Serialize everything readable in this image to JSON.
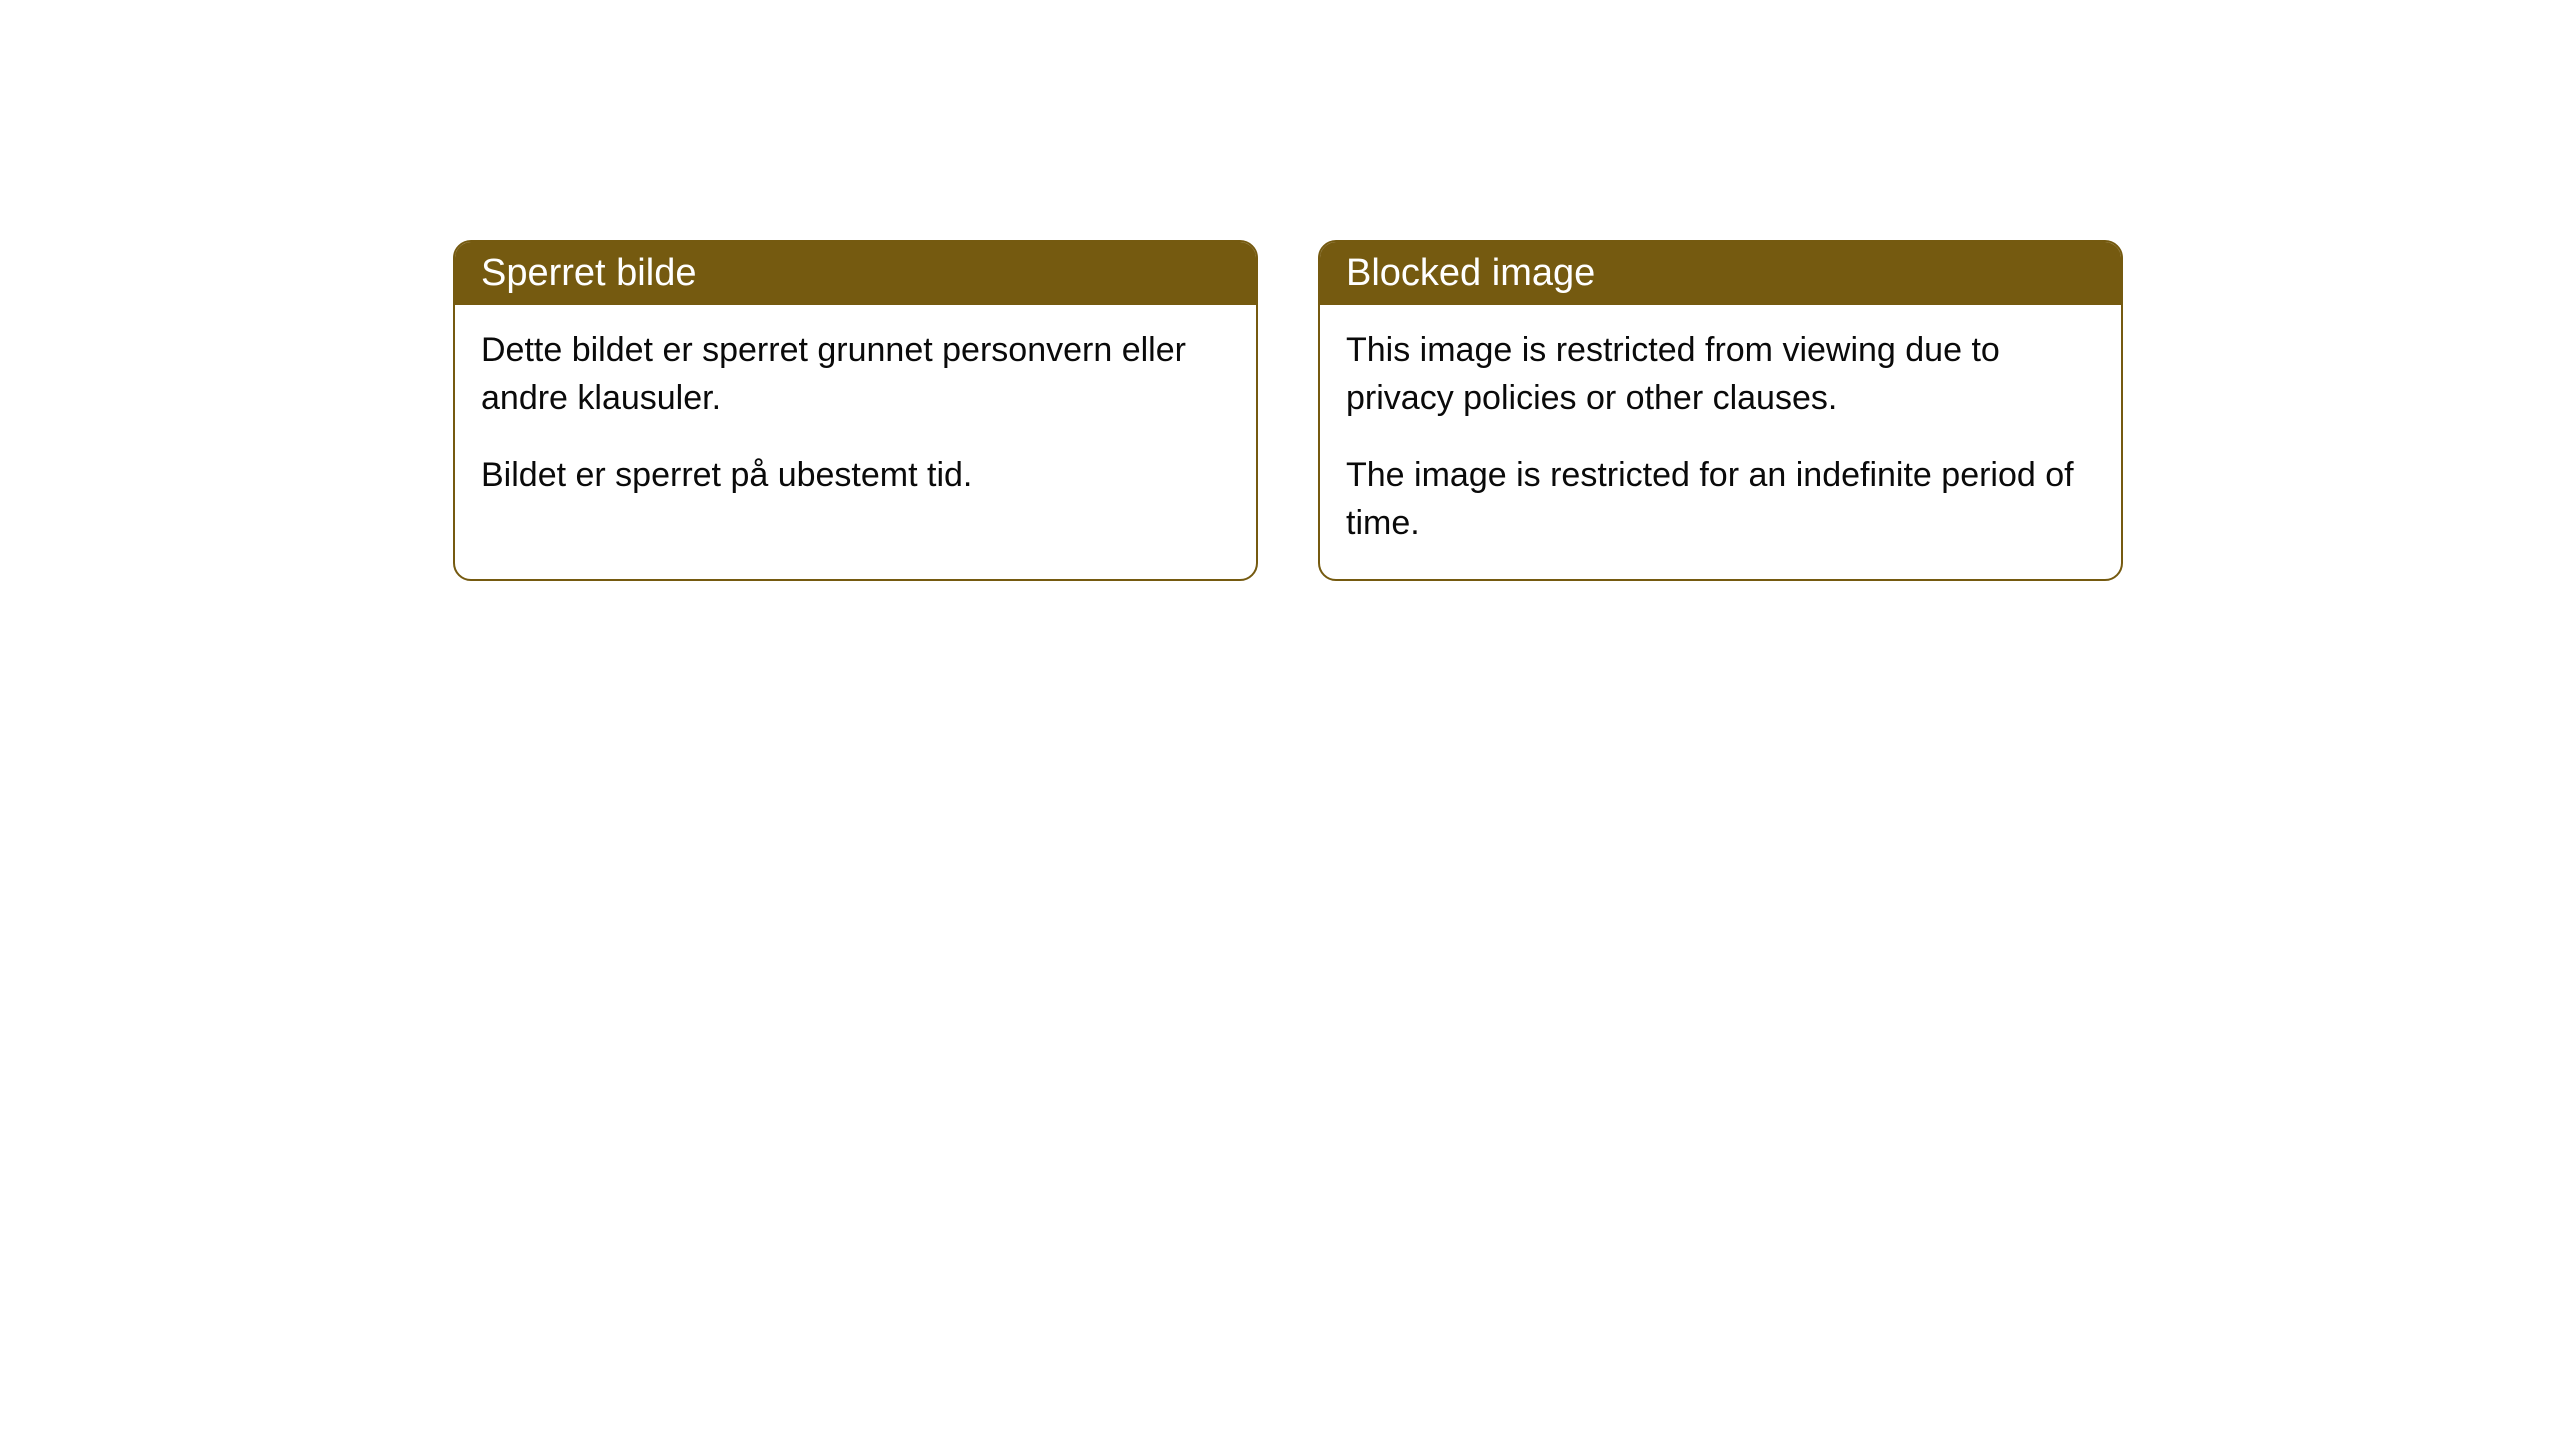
{
  "cards": [
    {
      "title": "Sperret bilde",
      "paragraph1": "Dette bildet er sperret grunnet personvern eller andre klausuler.",
      "paragraph2": "Bildet er sperret på ubestemt tid."
    },
    {
      "title": "Blocked image",
      "paragraph1": "This image is restricted from viewing due to privacy policies or other clauses.",
      "paragraph2": "The image is restricted for an indefinite period of time."
    }
  ],
  "styling": {
    "header_background": "#755a10",
    "header_text_color": "#ffffff",
    "border_color": "#755a10",
    "body_background": "#ffffff",
    "body_text_color": "#0a0a0a",
    "border_radius": 18,
    "title_fontsize": 38,
    "body_fontsize": 34
  }
}
